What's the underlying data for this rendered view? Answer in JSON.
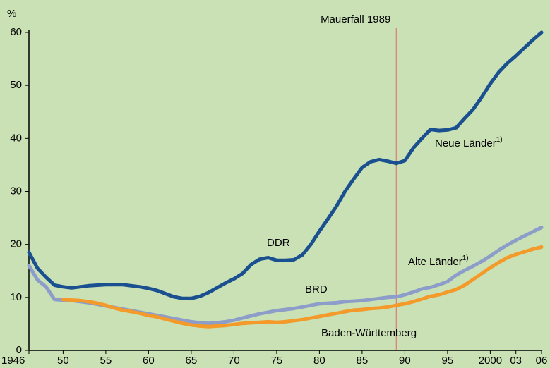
{
  "chart_data": {
    "type": "line",
    "y_label": "%",
    "xlim": [
      1946,
      2006
    ],
    "ylim": [
      0,
      60
    ],
    "xticks": [
      1946,
      {
        "value": 1950,
        "label": "50"
      },
      {
        "value": 1955,
        "label": "55"
      },
      {
        "value": 1960,
        "label": "60"
      },
      {
        "value": 1965,
        "label": "65"
      },
      {
        "value": 1970,
        "label": "70"
      },
      {
        "value": 1975,
        "label": "75"
      },
      {
        "value": 1980,
        "label": "80"
      },
      {
        "value": 1985,
        "label": "85"
      },
      {
        "value": 1990,
        "label": "90"
      },
      {
        "value": 1995,
        "label": "95"
      },
      2000,
      {
        "value": 2003,
        "label": "03"
      },
      {
        "value": 2006,
        "label": "06"
      }
    ],
    "yticks": [
      0,
      10,
      20,
      30,
      40,
      50,
      60
    ],
    "grid": false,
    "annotation": {
      "text": "Mauerfall 1989",
      "x": 1989,
      "color": "#e07a7a"
    },
    "series": [
      {
        "name": "DDR",
        "color": "#1a5090",
        "x": [
          1946,
          1947,
          1948,
          1949,
          1950,
          1951,
          1952,
          1953,
          1954,
          1955,
          1956,
          1957,
          1958,
          1959,
          1960,
          1961,
          1962,
          1963,
          1964,
          1965,
          1966,
          1967,
          1968,
          1969,
          1970,
          1971,
          1972,
          1973,
          1974,
          1975,
          1976,
          1977,
          1978,
          1979,
          1980,
          1981,
          1982,
          1983,
          1984,
          1985,
          1986,
          1987,
          1988,
          1989
        ],
        "values": [
          18.5,
          15.5,
          13.8,
          12.3,
          12,
          11.8,
          12,
          12.2,
          12.3,
          12.4,
          12.4,
          12.4,
          12.2,
          12,
          11.7,
          11.3,
          10.7,
          10.1,
          9.8,
          9.8,
          10.2,
          10.9,
          11.8,
          12.7,
          13.5,
          14.5,
          16.2,
          17.2,
          17.5,
          17,
          17,
          17.1,
          18,
          20,
          22.5,
          24.8,
          27.2,
          30,
          32.3,
          34.5,
          35.6,
          36,
          35.7,
          35.3
        ]
      },
      {
        "name": "Neue Länder",
        "footnote": "1)",
        "color": "#1a5090",
        "x": [
          1989,
          1990,
          1991,
          1992,
          1993,
          1994,
          1995,
          1996,
          1997,
          1998,
          1999,
          2000,
          2001,
          2002,
          2003,
          2004,
          2005,
          2006
        ],
        "values": [
          35.3,
          35.8,
          38.2,
          40,
          41.7,
          41.5,
          41.6,
          42,
          43.8,
          45.5,
          47.8,
          50.3,
          52.5,
          54.2,
          55.6,
          57.1,
          58.6,
          60
        ]
      },
      {
        "name": "BRD",
        "color": "#8d9dca",
        "x": [
          1946,
          1947,
          1948,
          1949,
          1950,
          1951,
          1952,
          1953,
          1954,
          1955,
          1956,
          1957,
          1958,
          1959,
          1960,
          1961,
          1962,
          1963,
          1964,
          1965,
          1966,
          1967,
          1968,
          1969,
          1970,
          1971,
          1972,
          1973,
          1974,
          1975,
          1976,
          1977,
          1978,
          1979,
          1980,
          1981,
          1982,
          1983,
          1984,
          1985,
          1986,
          1987,
          1988,
          1989
        ],
        "values": [
          16,
          13.3,
          12,
          9.6,
          9.5,
          9.4,
          9.2,
          9,
          8.7,
          8.4,
          8.1,
          7.8,
          7.5,
          7.2,
          6.9,
          6.6,
          6.3,
          6,
          5.7,
          5.4,
          5.2,
          5.1,
          5.2,
          5.4,
          5.7,
          6.1,
          6.5,
          6.9,
          7.2,
          7.5,
          7.7,
          7.9,
          8.2,
          8.5,
          8.8,
          8.9,
          9,
          9.2,
          9.3,
          9.4,
          9.6,
          9.8,
          10,
          10.1
        ]
      },
      {
        "name": "Alte Länder",
        "footnote": "1)",
        "color": "#8d9dca",
        "x": [
          1989,
          1990,
          1991,
          1992,
          1993,
          1994,
          1995,
          1996,
          1997,
          1998,
          1999,
          2000,
          2001,
          2002,
          2003,
          2004,
          2005,
          2006
        ],
        "values": [
          10.1,
          10.5,
          11,
          11.6,
          11.9,
          12.4,
          13,
          14.2,
          15.1,
          15.9,
          16.8,
          17.8,
          18.9,
          19.9,
          20.8,
          21.6,
          22.4,
          23.2
        ]
      },
      {
        "name": "Baden-Württemberg",
        "color": "#f39a2a",
        "x": [
          1950,
          1951,
          1952,
          1953,
          1954,
          1955,
          1956,
          1957,
          1958,
          1959,
          1960,
          1961,
          1962,
          1963,
          1964,
          1965,
          1966,
          1967,
          1968,
          1969,
          1970,
          1971,
          1972,
          1973,
          1974,
          1975,
          1976,
          1977,
          1978,
          1979,
          1980,
          1981,
          1982,
          1983,
          1984,
          1985,
          1986,
          1987,
          1988,
          1989,
          1990,
          1991,
          1992,
          1993,
          1994,
          1995,
          1996,
          1997,
          1998,
          1999,
          2000,
          2001,
          2002,
          2003,
          2004,
          2005,
          2006
        ],
        "values": [
          9.6,
          9.5,
          9.4,
          9.2,
          8.9,
          8.5,
          8,
          7.6,
          7.3,
          7,
          6.6,
          6.3,
          5.9,
          5.5,
          5.1,
          4.8,
          4.6,
          4.5,
          4.6,
          4.7,
          4.9,
          5.1,
          5.2,
          5.3,
          5.4,
          5.3,
          5.4,
          5.6,
          5.8,
          6.1,
          6.4,
          6.7,
          7,
          7.3,
          7.6,
          7.7,
          7.9,
          8,
          8.2,
          8.5,
          8.8,
          9.2,
          9.7,
          10.2,
          10.5,
          11,
          11.5,
          12.3,
          13.4,
          14.5,
          15.6,
          16.6,
          17.5,
          18.1,
          18.6,
          19.1,
          19.5
        ]
      }
    ]
  }
}
